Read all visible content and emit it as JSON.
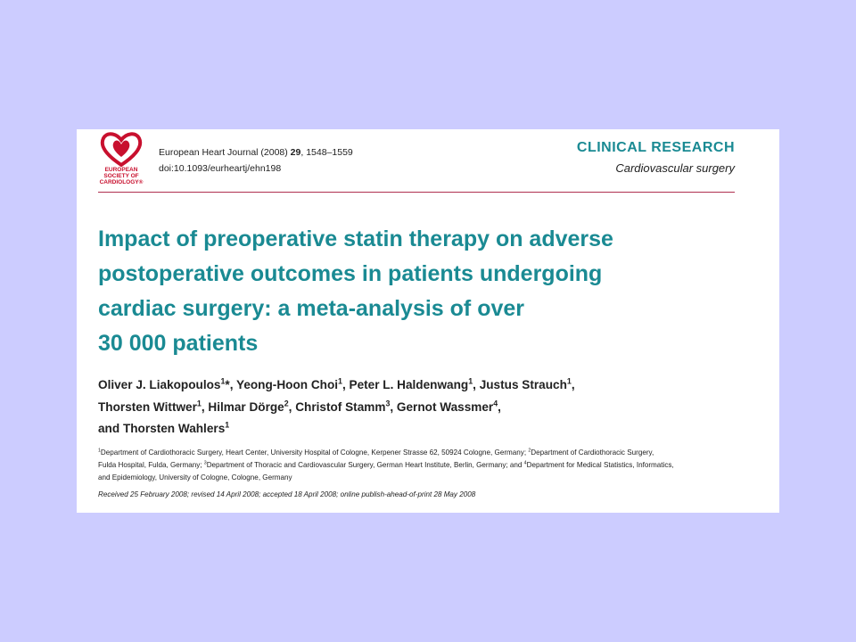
{
  "header": {
    "logo_text": [
      "EUROPEAN",
      "SOCIETY OF",
      "CARDIOLOGY®"
    ],
    "journal_line": [
      {
        "text": "European Heart Journal (2008) "
      },
      {
        "bold": "29"
      },
      {
        "text": ", 1548–1559"
      }
    ],
    "doi": "doi:10.1093/eurheartj/ehn198",
    "section": "CLINICAL RESEARCH",
    "subsection": "Cardiovascular surgery"
  },
  "title": [
    "Impact of preoperative statin therapy on adverse",
    "postoperative outcomes in patients undergoing",
    "cardiac surgery: a meta-analysis of over",
    "30 000 patients"
  ],
  "authors": [
    [
      {
        "text": "Oliver J. Liakopoulos"
      },
      {
        "sup": "1"
      },
      {
        "text": "*, Yeong-Hoon Choi"
      },
      {
        "sup": "1"
      },
      {
        "text": ", Peter L. Haldenwang"
      },
      {
        "sup": "1"
      },
      {
        "text": ", Justus Strauch"
      },
      {
        "sup": "1"
      },
      {
        "text": ","
      }
    ],
    [
      {
        "text": "Thorsten Wittwer"
      },
      {
        "sup": "1"
      },
      {
        "text": ", Hilmar Dörge"
      },
      {
        "sup": "2"
      },
      {
        "text": ", Christof Stamm"
      },
      {
        "sup": "3"
      },
      {
        "text": ", Gernot Wassmer"
      },
      {
        "sup": "4"
      },
      {
        "text": ","
      }
    ],
    [
      {
        "text": "and Thorsten Wahlers"
      },
      {
        "sup": "1"
      }
    ]
  ],
  "affiliations": [
    [
      {
        "sup": "1"
      },
      {
        "text": "Department of Cardiothoracic Surgery, Heart Center, University Hospital of Cologne, Kerpener Strasse 62, 50924 Cologne, Germany; "
      },
      {
        "sup": "2"
      },
      {
        "text": "Department of Cardiothoracic Surgery,"
      }
    ],
    [
      {
        "text": "Fulda Hospital, Fulda, Germany; "
      },
      {
        "sup": "3"
      },
      {
        "text": "Department of Thoracic and Cardiovascular Surgery, German Heart Institute, Berlin, Germany; and "
      },
      {
        "sup": "4"
      },
      {
        "text": "Department for Medical Statistics, Informatics,"
      }
    ],
    [
      {
        "text": "and Epidemiology, University of Cologne, Cologne, Germany"
      }
    ]
  ],
  "received": "Received 25 February 2008; revised 14 April 2008; accepted 18 April 2008; online publish-ahead-of-print 28 May 2008"
}
